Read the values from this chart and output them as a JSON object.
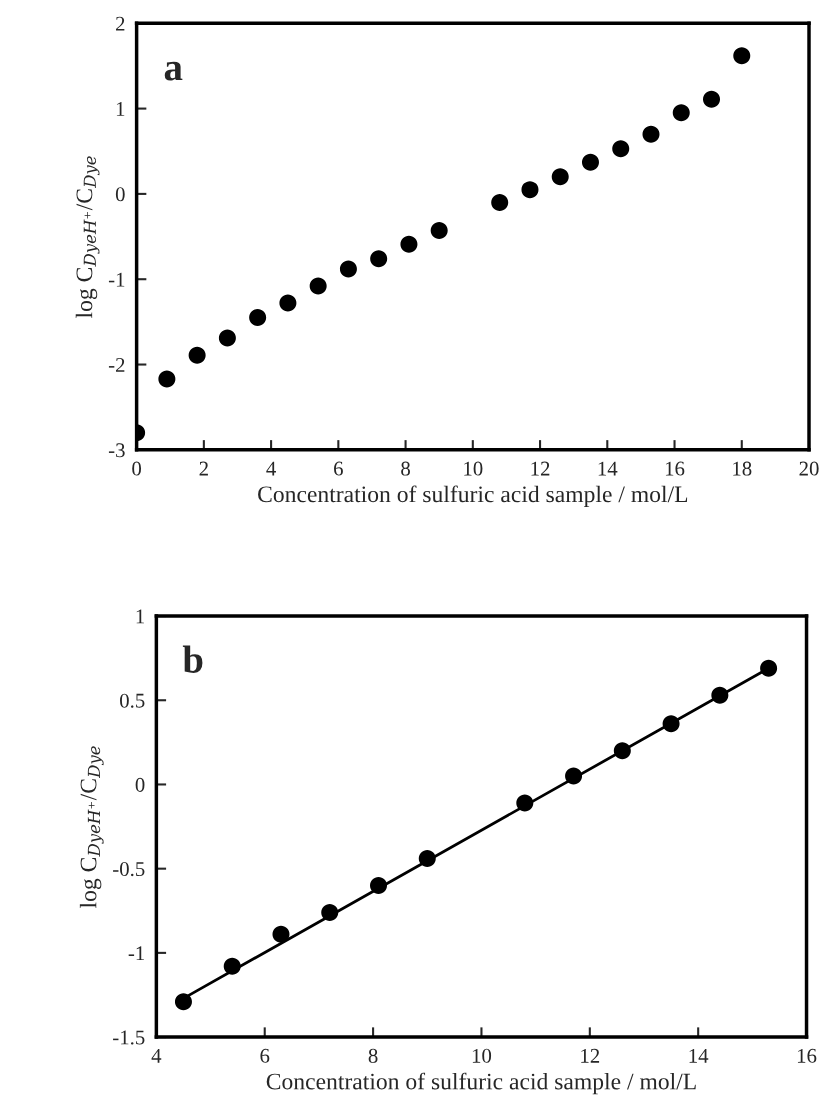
{
  "chart_data": [
    {
      "type": "scatter",
      "xlabel": "Concentration of sulfuric acid sample / mol/L",
      "ylabel": "log C$_{DyeH⁺}$/C$_{Dye}$",
      "annotations": [
        "a"
      ],
      "marker": "circle",
      "x": [
        0,
        0.9,
        1.8,
        2.7,
        3.6,
        4.5,
        5.4,
        6.3,
        7.2,
        8.1,
        9.0,
        10.8,
        11.7,
        12.6,
        13.5,
        14.4,
        15.3,
        16.2,
        17.1,
        18.0
      ],
      "series": [
        {
          "color": "#000000",
          "values": [
            -2.8,
            -2.17,
            -1.89,
            -1.69,
            -1.45,
            -1.28,
            -1.08,
            -0.88,
            -0.76,
            -0.59,
            -0.43,
            -0.1,
            0.05,
            0.2,
            0.37,
            0.53,
            0.7,
            0.95,
            1.11,
            1.62
          ]
        }
      ],
      "xlim": [
        0,
        20
      ],
      "xticks": [
        0,
        2,
        4,
        6,
        8,
        10,
        12,
        14,
        16,
        18,
        20
      ],
      "ylim": [
        -3,
        2
      ],
      "yticks": [
        -3,
        -2,
        -1,
        0,
        1,
        2
      ]
    },
    {
      "type": "scatter",
      "xlabel": "Concentration of sulfuric acid sample / mol/L",
      "ylabel": "log C$_{DyeH⁺}$/C$_{Dye}$",
      "annotations": [
        "b"
      ],
      "series": [
        {
          "type": "scatter",
          "marker": "circle",
          "color": "#000000",
          "x": [
            4.5,
            5.4,
            6.3,
            7.2,
            8.1,
            9.0,
            10.8,
            11.7,
            12.6,
            13.5,
            14.4,
            15.3
          ],
          "values": [
            -1.29,
            -1.08,
            -0.89,
            -0.76,
            -0.6,
            -0.44,
            -0.11,
            0.05,
            0.2,
            0.36,
            0.53,
            0.69
          ]
        },
        {
          "type": "line",
          "marker": "none",
          "color": "#000000",
          "x": [
            4.5,
            15.3
          ],
          "values": [
            -1.27,
            0.69
          ]
        }
      ],
      "xlim": [
        4,
        16
      ],
      "xticks": [
        4,
        6,
        8,
        10,
        12,
        14,
        16
      ],
      "ylim": [
        -1.5,
        1
      ],
      "yticks": [
        -1.5,
        -1,
        -0.5,
        0,
        0.5,
        1
      ]
    }
  ]
}
